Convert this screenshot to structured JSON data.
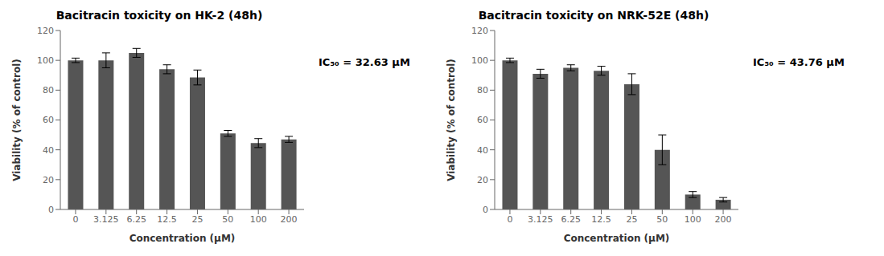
{
  "chart_data": [
    {
      "type": "bar",
      "title": "Bacitracin toxicity on HK-2 (48h)",
      "xlabel": "Concentration (μM)",
      "ylabel": "Viability (% of control)",
      "categories": [
        "0",
        "3.125",
        "6.25",
        "12.5",
        "25",
        "50",
        "100",
        "200"
      ],
      "values": [
        100,
        100,
        105,
        94,
        88.5,
        51,
        44.5,
        47
      ],
      "errors": [
        1.5,
        5,
        3,
        3,
        5,
        2,
        3,
        2
      ],
      "annotation": "IC₅₀ = 32.63 μM",
      "ylim": [
        0,
        120
      ],
      "yticks": [
        0,
        20,
        40,
        60,
        80,
        100,
        120
      ],
      "color": "#555555",
      "grid": false
    },
    {
      "type": "bar",
      "title": "Bacitracin toxicity on NRK-52E (48h)",
      "xlabel": "Concentration (μM)",
      "ylabel": "Viability (% of control)",
      "categories": [
        "0",
        "3.125",
        "6.25",
        "12.5",
        "25",
        "50",
        "100",
        "200"
      ],
      "values": [
        100,
        91,
        95,
        93,
        84,
        40,
        10,
        6.5
      ],
      "errors": [
        1.5,
        3,
        2,
        3,
        7,
        10,
        2,
        1.5
      ],
      "annotation": "IC₅₀ = 43.76 μM",
      "ylim": [
        0,
        120
      ],
      "yticks": [
        0,
        20,
        40,
        60,
        80,
        100,
        120
      ],
      "color": "#555555",
      "grid": false
    }
  ]
}
